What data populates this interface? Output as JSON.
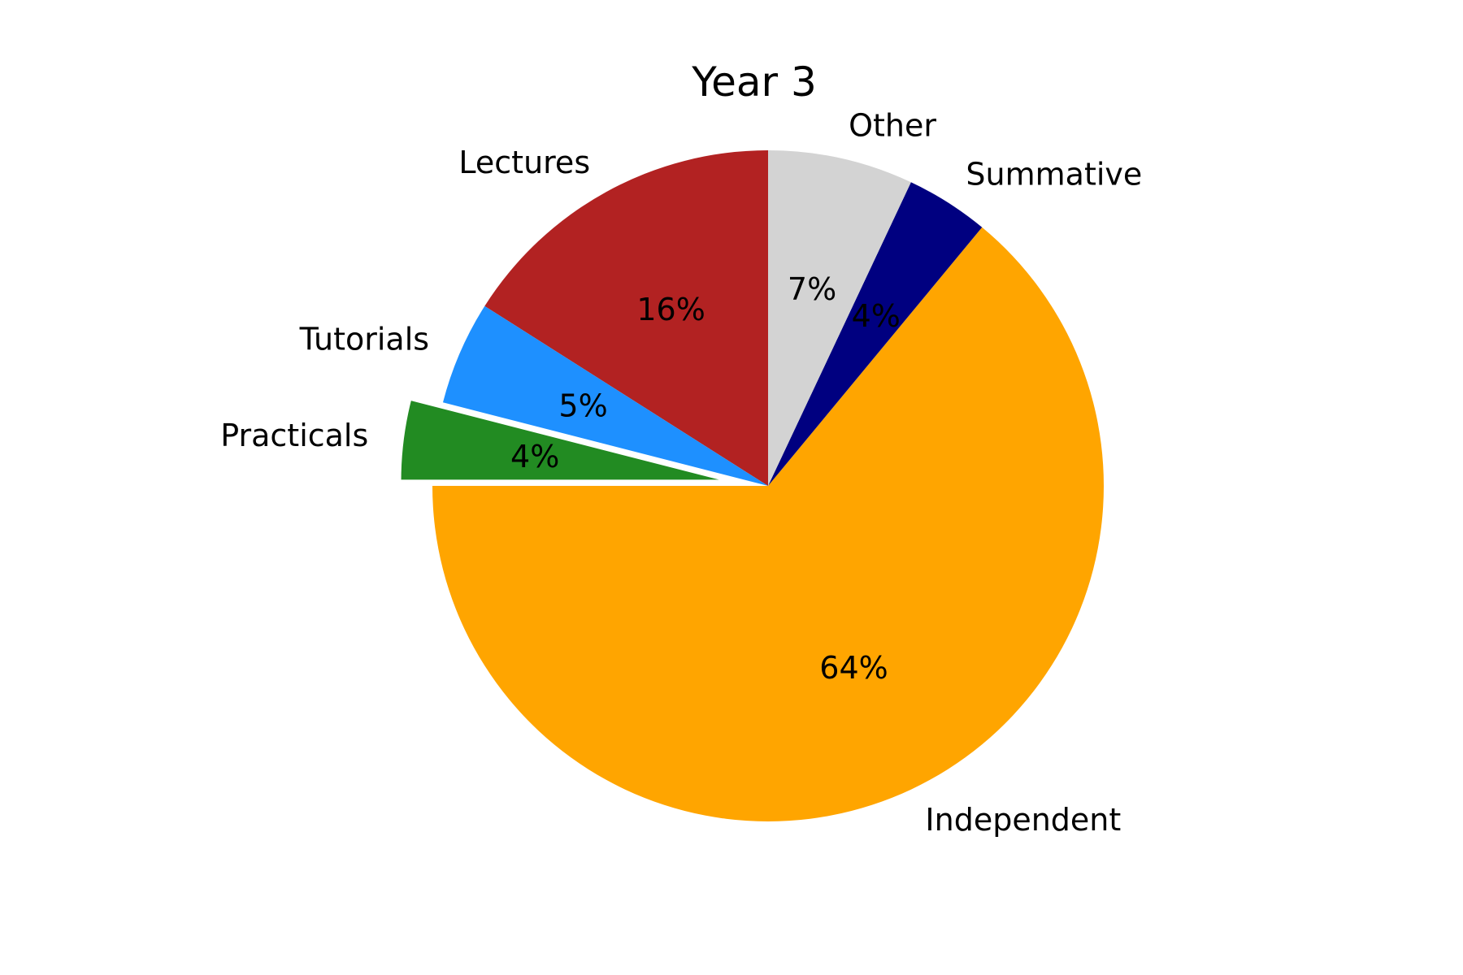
{
  "chart_data": {
    "type": "pie",
    "title": "Year 3",
    "start_angle_deg": 90,
    "direction": "counterclockwise",
    "slices": [
      {
        "label": "Lectures",
        "value": 16,
        "pct_label": "16%",
        "color": "#B22222",
        "explode": false
      },
      {
        "label": "Tutorials",
        "value": 5,
        "pct_label": "5%",
        "color": "#1E90FF",
        "explode": false
      },
      {
        "label": "Practicals",
        "value": 4,
        "pct_label": "4%",
        "color": "#228B22",
        "explode": true
      },
      {
        "label": "Independent",
        "value": 64,
        "pct_label": "64%",
        "color": "#FFA500",
        "explode": false
      },
      {
        "label": "Summative",
        "value": 4,
        "pct_label": "4%",
        "color": "#000080",
        "explode": false
      },
      {
        "label": "Other",
        "value": 7,
        "pct_label": "7%",
        "color": "#D3D3D3",
        "explode": false
      }
    ]
  }
}
